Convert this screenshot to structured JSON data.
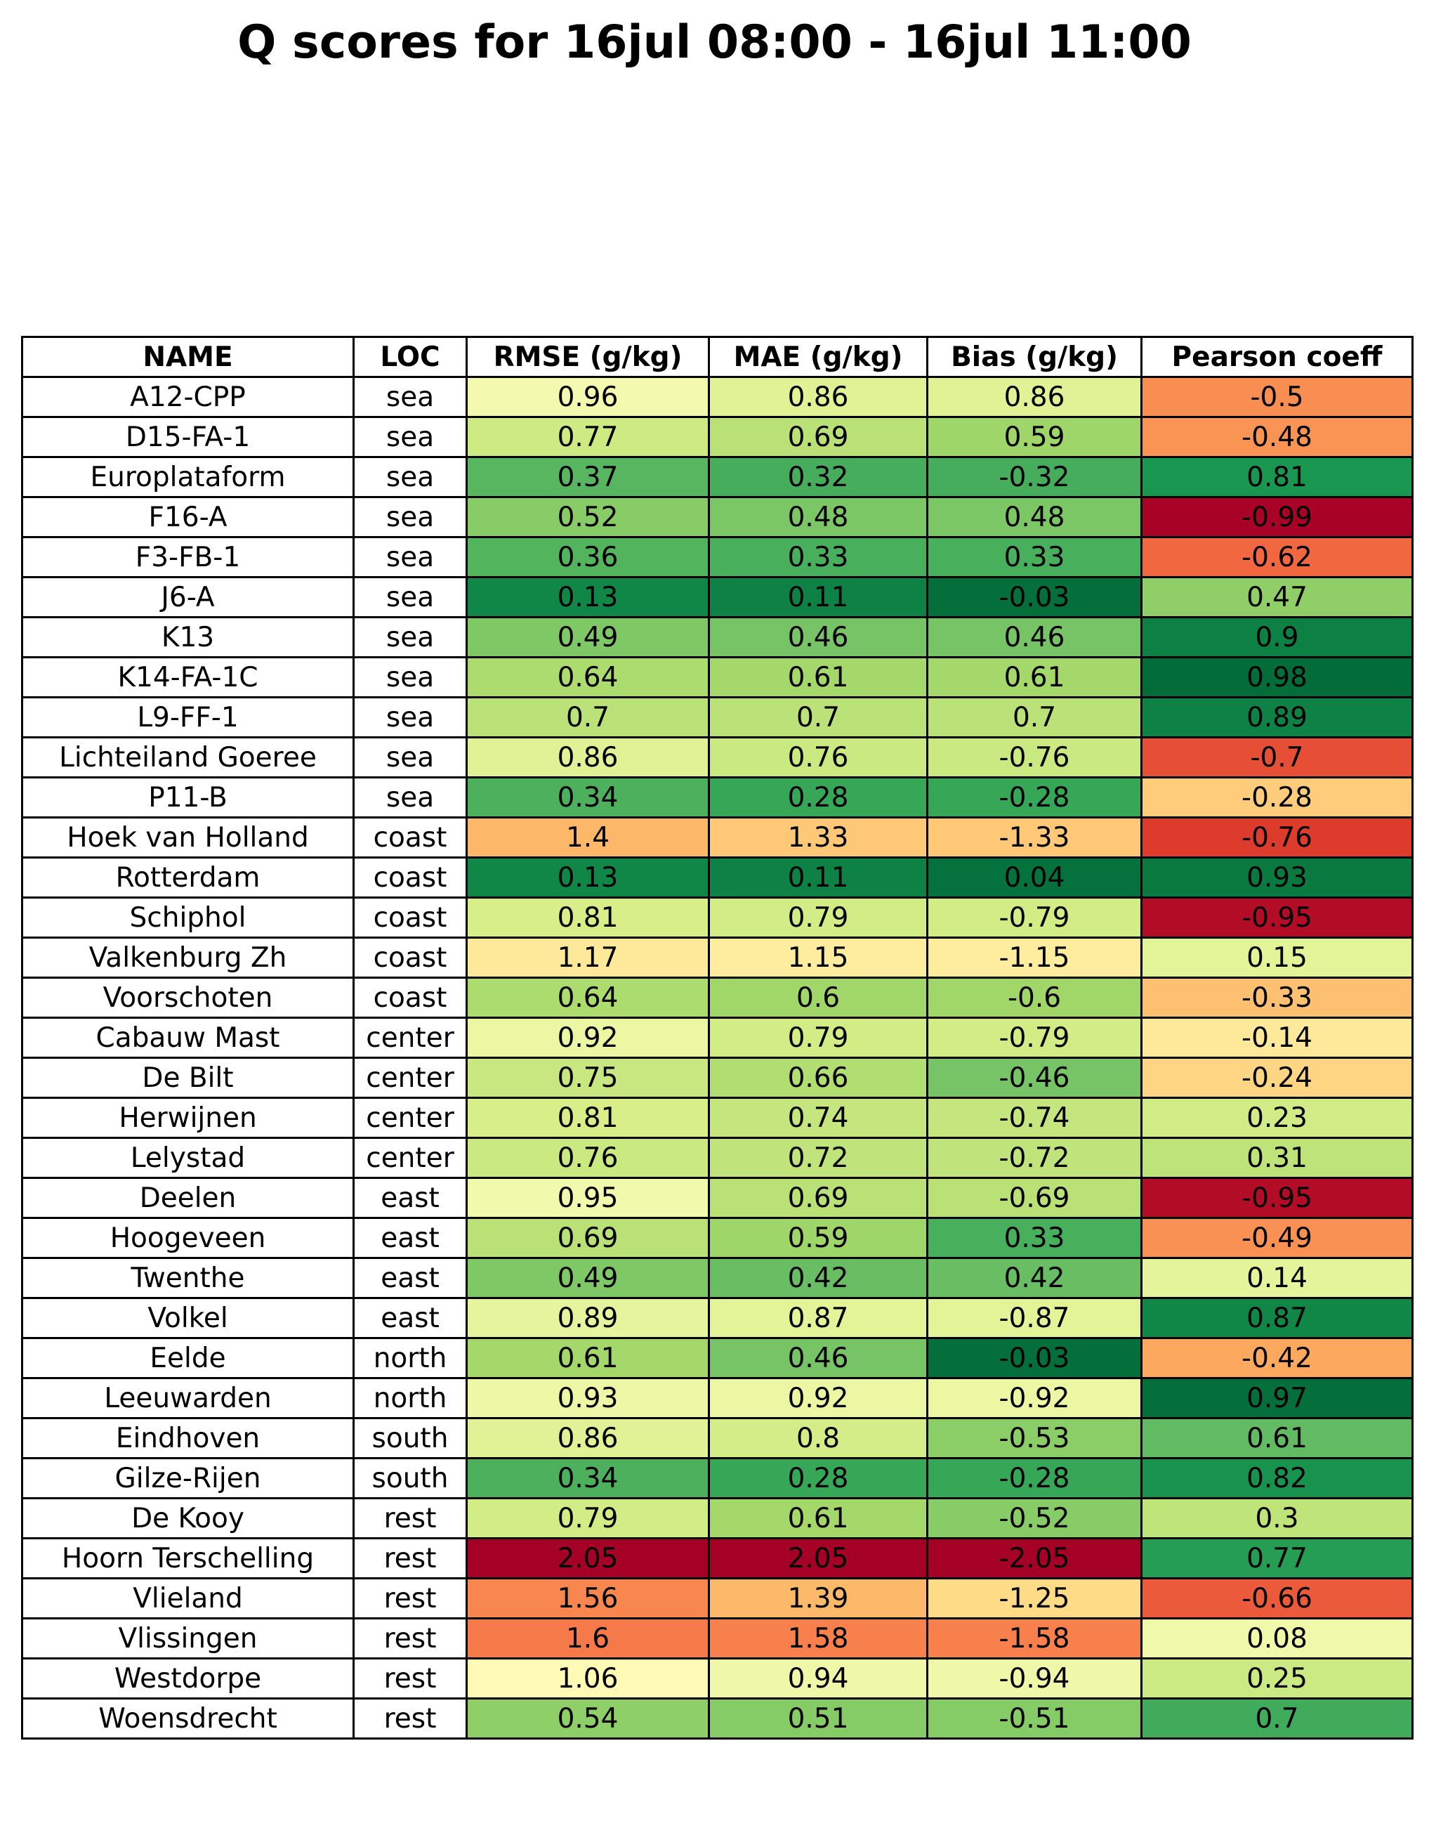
{
  "chart_data": {
    "type": "table",
    "title": "Q scores for 16jul 08:00 - 16jul 11:00",
    "columns": [
      "NAME",
      "LOC",
      "RMSE (g/kg)",
      "MAE (g/kg)",
      "Bias (g/kg)",
      "Pearson coeff"
    ],
    "colormap": "RdYlGn (per column; green = good, red = bad)",
    "rows": [
      [
        "A12-CPP",
        "sea",
        "0.96",
        "0.86",
        "0.86",
        "-0.5"
      ],
      [
        "D15-FA-1",
        "sea",
        "0.77",
        "0.69",
        "0.59",
        "-0.48"
      ],
      [
        "Europlataform",
        "sea",
        "0.37",
        "0.32",
        "-0.32",
        "0.81"
      ],
      [
        "F16-A",
        "sea",
        "0.52",
        "0.48",
        "0.48",
        "-0.99"
      ],
      [
        "F3-FB-1",
        "sea",
        "0.36",
        "0.33",
        "0.33",
        "-0.62"
      ],
      [
        "J6-A",
        "sea",
        "0.13",
        "0.11",
        "-0.03",
        "0.47"
      ],
      [
        "K13",
        "sea",
        "0.49",
        "0.46",
        "0.46",
        "0.9"
      ],
      [
        "K14-FA-1C",
        "sea",
        "0.64",
        "0.61",
        "0.61",
        "0.98"
      ],
      [
        "L9-FF-1",
        "sea",
        "0.7",
        "0.7",
        "0.7",
        "0.89"
      ],
      [
        "Lichteiland Goeree",
        "sea",
        "0.86",
        "0.76",
        "-0.76",
        "-0.7"
      ],
      [
        "P11-B",
        "sea",
        "0.34",
        "0.28",
        "-0.28",
        "-0.28"
      ],
      [
        "Hoek van Holland",
        "coast",
        "1.4",
        "1.33",
        "-1.33",
        "-0.76"
      ],
      [
        "Rotterdam",
        "coast",
        "0.13",
        "0.11",
        "0.04",
        "0.93"
      ],
      [
        "Schiphol",
        "coast",
        "0.81",
        "0.79",
        "-0.79",
        "-0.95"
      ],
      [
        "Valkenburg Zh",
        "coast",
        "1.17",
        "1.15",
        "-1.15",
        "0.15"
      ],
      [
        "Voorschoten",
        "coast",
        "0.64",
        "0.6",
        "-0.6",
        "-0.33"
      ],
      [
        "Cabauw Mast",
        "center",
        "0.92",
        "0.79",
        "-0.79",
        "-0.14"
      ],
      [
        "De Bilt",
        "center",
        "0.75",
        "0.66",
        "-0.46",
        "-0.24"
      ],
      [
        "Herwijnen",
        "center",
        "0.81",
        "0.74",
        "-0.74",
        "0.23"
      ],
      [
        "Lelystad",
        "center",
        "0.76",
        "0.72",
        "-0.72",
        "0.31"
      ],
      [
        "Deelen",
        "east",
        "0.95",
        "0.69",
        "-0.69",
        "-0.95"
      ],
      [
        "Hoogeveen",
        "east",
        "0.69",
        "0.59",
        "0.33",
        "-0.49"
      ],
      [
        "Twenthe",
        "east",
        "0.49",
        "0.42",
        "0.42",
        "0.14"
      ],
      [
        "Volkel",
        "east",
        "0.89",
        "0.87",
        "-0.87",
        "0.87"
      ],
      [
        "Eelde",
        "north",
        "0.61",
        "0.46",
        "-0.03",
        "-0.42"
      ],
      [
        "Leeuwarden",
        "north",
        "0.93",
        "0.92",
        "-0.92",
        "0.97"
      ],
      [
        "Eindhoven",
        "south",
        "0.86",
        "0.8",
        "-0.53",
        "0.61"
      ],
      [
        "Gilze-Rijen",
        "south",
        "0.34",
        "0.28",
        "-0.28",
        "0.82"
      ],
      [
        "De Kooy",
        "rest",
        "0.79",
        "0.61",
        "-0.52",
        "0.3"
      ],
      [
        "Hoorn Terschelling",
        "rest",
        "2.05",
        "2.05",
        "-2.05",
        "0.77"
      ],
      [
        "Vlieland",
        "rest",
        "1.56",
        "1.39",
        "-1.25",
        "-0.66"
      ],
      [
        "Vlissingen",
        "rest",
        "1.6",
        "1.58",
        "-1.58",
        "0.08"
      ],
      [
        "Westdorpe",
        "rest",
        "1.06",
        "0.94",
        "-0.94",
        "0.25"
      ],
      [
        "Woensdrecht",
        "rest",
        "0.54",
        "0.51",
        "-0.51",
        "0.7"
      ]
    ]
  }
}
